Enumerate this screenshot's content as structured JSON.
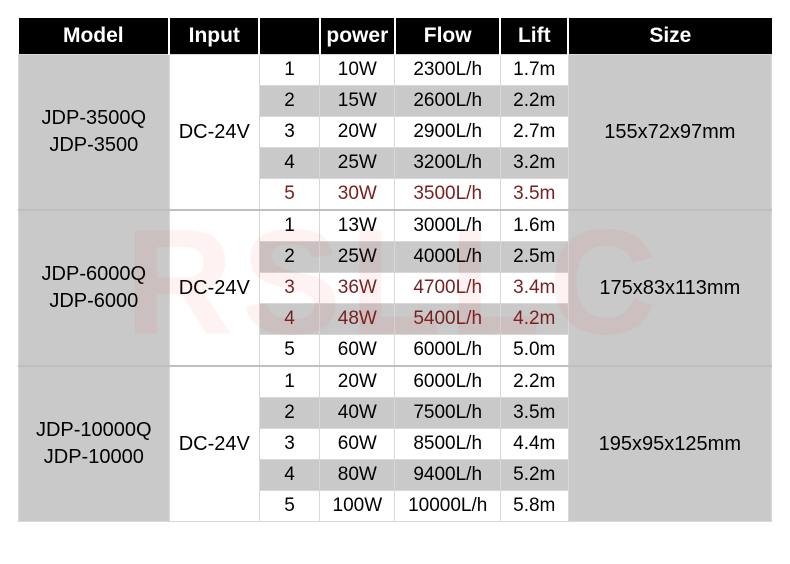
{
  "watermark_text": "RSLLC",
  "headers": {
    "model": "Model",
    "input": "Input",
    "level": "",
    "power": "power",
    "flow": "Flow",
    "lift": "Lift",
    "size": "Size"
  },
  "col_widths": {
    "model": "20%",
    "input": "12%",
    "level": "8%",
    "power": "10%",
    "flow": "14%",
    "lift": "9%",
    "size": "27%"
  },
  "groups": [
    {
      "model_line1": "JDP-3500Q",
      "model_line2": "JDP-3500",
      "input": "DC-24V",
      "size": "155x72x97mm",
      "rows": [
        {
          "level": "1",
          "power": "10W",
          "flow": "2300L/h",
          "lift": "1.7m",
          "shade": "white"
        },
        {
          "level": "2",
          "power": "15W",
          "flow": "2600L/h",
          "lift": "2.2m",
          "shade": "gray"
        },
        {
          "level": "3",
          "power": "20W",
          "flow": "2900L/h",
          "lift": "2.7m",
          "shade": "white"
        },
        {
          "level": "4",
          "power": "25W",
          "flow": "3200L/h",
          "lift": "3.2m",
          "shade": "gray"
        },
        {
          "level": "5",
          "power": "30W",
          "flow": "3500L/h",
          "lift": "3.5m",
          "shade": "white",
          "tint": true
        }
      ]
    },
    {
      "model_line1": "JDP-6000Q",
      "model_line2": "JDP-6000",
      "input": "DC-24V",
      "size": "175x83x113mm",
      "rows": [
        {
          "level": "1",
          "power": "13W",
          "flow": "3000L/h",
          "lift": "1.6m",
          "shade": "white"
        },
        {
          "level": "2",
          "power": "25W",
          "flow": "4000L/h",
          "lift": "2.5m",
          "shade": "gray"
        },
        {
          "level": "3",
          "power": "36W",
          "flow": "4700L/h",
          "lift": "3.4m",
          "shade": "white",
          "tint": true
        },
        {
          "level": "4",
          "power": "48W",
          "flow": "5400L/h",
          "lift": "4.2m",
          "shade": "gray",
          "tint": true
        },
        {
          "level": "5",
          "power": "60W",
          "flow": "6000L/h",
          "lift": "5.0m",
          "shade": "white"
        }
      ]
    },
    {
      "model_line1": "JDP-10000Q",
      "model_line2": "JDP-10000",
      "input": "DC-24V",
      "size": "195x95x125mm",
      "rows": [
        {
          "level": "1",
          "power": "20W",
          "flow": "6000L/h",
          "lift": "2.2m",
          "shade": "white"
        },
        {
          "level": "2",
          "power": "40W",
          "flow": "7500L/h",
          "lift": "3.5m",
          "shade": "gray"
        },
        {
          "level": "3",
          "power": "60W",
          "flow": "8500L/h",
          "lift": "4.4m",
          "shade": "white"
        },
        {
          "level": "4",
          "power": "80W",
          "flow": "9400L/h",
          "lift": "5.2m",
          "shade": "gray"
        },
        {
          "level": "5",
          "power": "100W",
          "flow": "10000L/h",
          "lift": "5.8m",
          "shade": "white"
        }
      ]
    }
  ]
}
